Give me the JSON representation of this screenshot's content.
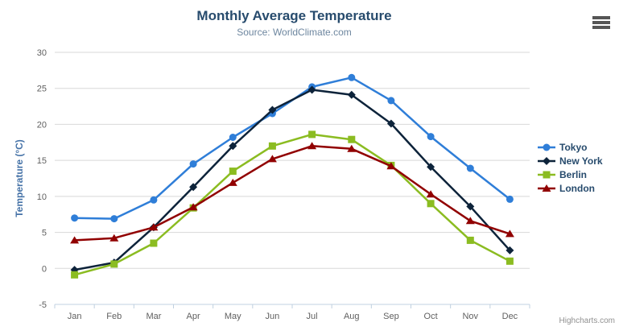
{
  "chart": {
    "title": "Monthly Average Temperature",
    "subtitle": "Source: WorldClimate.com",
    "credits": "Highcharts.com",
    "export_icon": "hamburger-icon"
  },
  "colors": {
    "title": "#274b6d",
    "subtitle": "#6d869f",
    "axis_title": "#4572a7",
    "tick_labels": "#606060",
    "gridline": "#d8d8d8",
    "axis_line": "#c0d0e0",
    "legend_text": "#274b6d"
  },
  "chart_data": {
    "type": "line",
    "title": "Monthly Average Temperature",
    "subtitle": "Source: WorldClimate.com",
    "categories": [
      "Jan",
      "Feb",
      "Mar",
      "Apr",
      "May",
      "Jun",
      "Jul",
      "Aug",
      "Sep",
      "Oct",
      "Nov",
      "Dec"
    ],
    "xlabel": "",
    "ylabel": "Temperature (°C)",
    "ylim": [
      -5,
      30
    ],
    "ytick_interval": 5,
    "grid": true,
    "legend_position": "right",
    "series": [
      {
        "name": "Tokyo",
        "color": "#2f7ed8",
        "marker": "circle",
        "values": [
          7.0,
          6.9,
          9.5,
          14.5,
          18.2,
          21.5,
          25.2,
          26.5,
          23.3,
          18.3,
          13.9,
          9.6
        ]
      },
      {
        "name": "New York",
        "color": "#0d233a",
        "marker": "diamond",
        "values": [
          -0.2,
          0.8,
          5.7,
          11.3,
          17.0,
          22.0,
          24.8,
          24.1,
          20.1,
          14.1,
          8.6,
          2.5
        ]
      },
      {
        "name": "Berlin",
        "color": "#8bbc21",
        "marker": "square",
        "values": [
          -0.9,
          0.6,
          3.5,
          8.4,
          13.5,
          17.0,
          18.6,
          17.9,
          14.3,
          9.0,
          3.9,
          1.0
        ]
      },
      {
        "name": "London",
        "color": "#910000",
        "marker": "triangle",
        "values": [
          3.9,
          4.2,
          5.7,
          8.5,
          11.9,
          15.2,
          17.0,
          16.6,
          14.2,
          10.3,
          6.6,
          4.8
        ]
      }
    ]
  }
}
